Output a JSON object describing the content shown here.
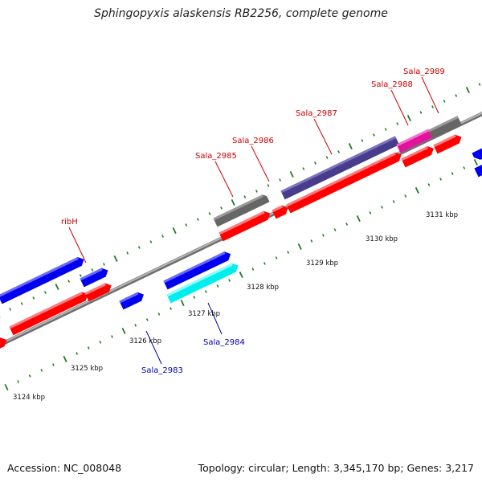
{
  "title": "Sphingopyxis alaskensis RB2256, complete genome",
  "footer": {
    "accession": "Accession: NC_008048",
    "topology": "Topology: circular; Length: 3,345,170 bp; Genes: 3,217"
  },
  "colors": {
    "backbone": "#8c8c8c",
    "tick": "#1c7a1c",
    "forward_gene": "#0000f0",
    "reverse_gene": "#ff0000",
    "grey_gene": "#666666",
    "slate_gene": "#483d8b",
    "magenta_gene": "#e0139c",
    "cyan_gene": "#00eeee",
    "label_red": "#cc0000",
    "label_blue": "#0000aa"
  },
  "kbp_labels": [
    "3124 kbp",
    "3125 kbp",
    "3126 kbp",
    "3127 kbp",
    "3128 kbp",
    "3129 kbp",
    "3130 kbp",
    "3131 kbp"
  ],
  "gene_labels": {
    "ribH": "ribH",
    "sala_2983": "Sala_2983",
    "sala_2984": "Sala_2984",
    "sala_2985": "Sala_2985",
    "sala_2986": "Sala_2986",
    "sala_2987": "Sala_2987",
    "sala_2988": "Sala_2988",
    "sala_2989": "Sala_2989"
  }
}
